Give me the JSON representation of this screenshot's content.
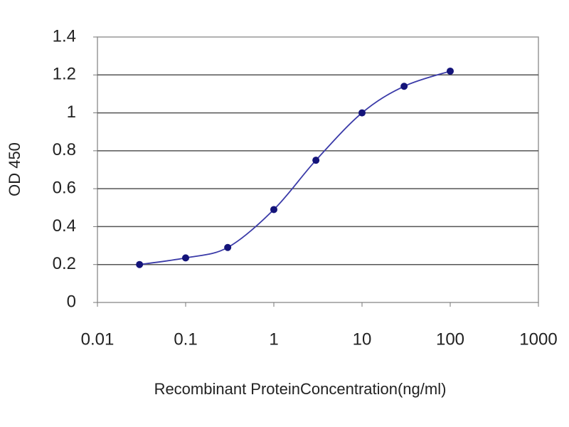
{
  "chart_data": {
    "type": "line",
    "x_label": "Recombinant ProteinConcentration(ng/ml)",
    "y_label": "OD 450",
    "x": [
      0.03,
      0.1,
      0.3,
      1,
      3,
      10,
      30,
      100
    ],
    "values": [
      0.2,
      0.235,
      0.29,
      0.49,
      0.75,
      1.0,
      1.14,
      1.22
    ],
    "color": "#3a3aa8",
    "marker_color": "#14147a",
    "xlim": [
      0.01,
      1000
    ],
    "xticks": [
      0.01,
      0.1,
      1,
      10,
      100,
      1000
    ],
    "xscale": "log",
    "ylim": [
      0,
      1.4
    ],
    "yticks": [
      0,
      0.2,
      0.4,
      0.6,
      0.8,
      1,
      1.2,
      1.4
    ],
    "grid": true
  }
}
